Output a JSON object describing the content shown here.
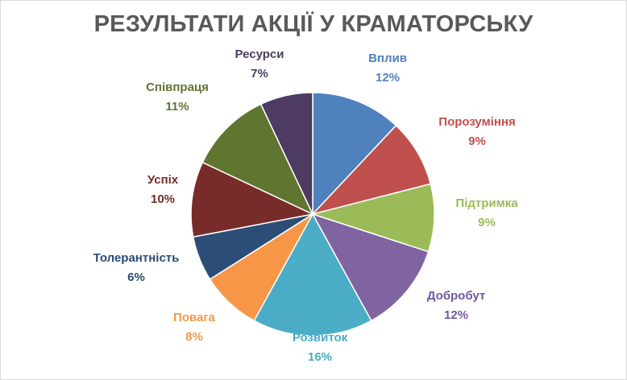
{
  "chart_data": {
    "type": "pie",
    "title": "РЕЗУЛЬТАТИ АКЦІЇ У КРАМАТОРСЬКУ",
    "start_angle_deg": 0,
    "direction": "clockwise",
    "slices": [
      {
        "label": "Вплив",
        "value": 12,
        "value_label": "12%",
        "color": "#4f81bd",
        "label_color": "#4f81bd"
      },
      {
        "label": "Порозуміння",
        "value": 9,
        "value_label": "9%",
        "color": "#c0504d",
        "label_color": "#c0504d"
      },
      {
        "label": "Підтримка",
        "value": 9,
        "value_label": "9%",
        "color": "#9bbb59",
        "label_color": "#9bbb59"
      },
      {
        "label": "Добробут",
        "value": 12,
        "value_label": "12%",
        "color": "#8064a2",
        "label_color": "#7159a0"
      },
      {
        "label": "Розвиток",
        "value": 16,
        "value_label": "16%",
        "color": "#4bacc6",
        "label_color": "#4bacc6"
      },
      {
        "label": "Повага",
        "value": 8,
        "value_label": "8%",
        "color": "#f79646",
        "label_color": "#f79646"
      },
      {
        "label": "Толерантність",
        "value": 6,
        "value_label": "6%",
        "color": "#2c4d75",
        "label_color": "#2c4d75"
      },
      {
        "label": "Успіх",
        "value": 10,
        "value_label": "10%",
        "color": "#772c2a",
        "label_color": "#772c2a"
      },
      {
        "label": "Співпраця",
        "value": 11,
        "value_label": "11%",
        "color": "#5f7530",
        "label_color": "#5f7530"
      },
      {
        "label": "Ресурси",
        "value": 7,
        "value_label": "7%",
        "color": "#4d3b62",
        "label_color": "#4d3b62"
      }
    ],
    "legend": "none",
    "data_labels": "outside"
  }
}
